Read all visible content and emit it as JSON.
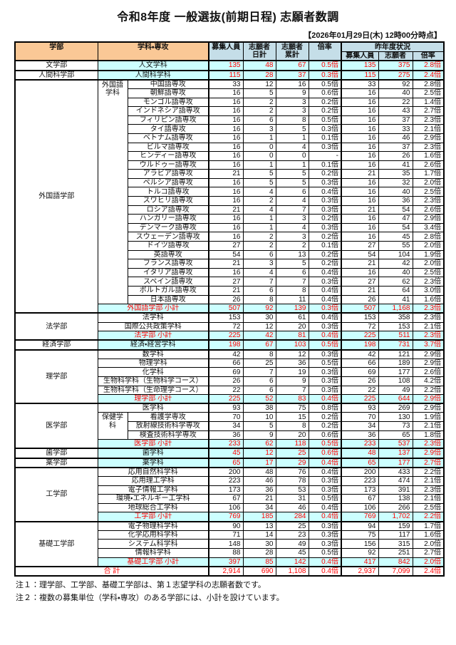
{
  "title": "令和8年度 一般選抜(前期日程) 志願者数調",
  "timestamp": "【2026年01月29日(木) 12時00分時点】",
  "colors": {
    "header_peach": "#FAC896",
    "header_blue": "#C5DEE8",
    "highlight_cyan": "#CCFFFF",
    "accent_red": "#FF0000"
  },
  "notes": {
    "note1": "注１：理学部、工学部、基礎工学部は、第１志望学科の志願者数です。",
    "note2": "注２：複数の募集単位（学科・専攻）のある学部には、小計を設けています。"
  },
  "table": {
    "header": {
      "faculty": "学部",
      "department": "学科・専攻",
      "capacity": "募集人員",
      "applicants_daily": "志願者\n日計",
      "applicants_total": "志願者\n累計",
      "ratio": "倍率",
      "last_year": "昨年度状況",
      "ly_capacity": "募集人員",
      "ly_applicants": "志願者",
      "ly_ratio": "倍率"
    },
    "rows": [
      {
        "faculty": {
          "text": "文学部",
          "rowspan": 1
        },
        "major": {
          "text": "人文学科",
          "colspan": 2
        },
        "highlight": true,
        "group_start": true,
        "values": [
          "135",
          "48",
          "67",
          "0.5倍",
          "135",
          "375",
          "2.8倍"
        ]
      },
      {
        "faculty": {
          "text": "人間科学部",
          "rowspan": 1
        },
        "major": {
          "text": "人間科学科",
          "colspan": 2
        },
        "highlight": true,
        "group_start": true,
        "values": [
          "115",
          "28",
          "37",
          "0.3倍",
          "115",
          "275",
          "2.4倍"
        ]
      },
      {
        "faculty": {
          "text": "外国語学部",
          "rowspan": 26
        },
        "dept": {
          "text": "外国語\n学科",
          "rowspan": 25
        },
        "major": {
          "text": "中国語専攻",
          "colspan": 1
        },
        "group_start": true,
        "values": [
          "33",
          "12",
          "16",
          "0.5倍",
          "33",
          "92",
          "2.8倍"
        ]
      },
      {
        "major": {
          "text": "朝鮮語専攻",
          "colspan": 1
        },
        "values": [
          "16",
          "5",
          "9",
          "0.6倍",
          "16",
          "40",
          "2.5倍"
        ]
      },
      {
        "major": {
          "text": "モンゴル語専攻",
          "colspan": 1
        },
        "values": [
          "16",
          "2",
          "3",
          "0.2倍",
          "16",
          "22",
          "1.4倍"
        ]
      },
      {
        "major": {
          "text": "インドネシア語専攻",
          "colspan": 1
        },
        "values": [
          "16",
          "2",
          "3",
          "0.2倍",
          "16",
          "43",
          "2.7倍"
        ]
      },
      {
        "major": {
          "text": "フィリピン語専攻",
          "colspan": 1
        },
        "values": [
          "16",
          "6",
          "8",
          "0.5倍",
          "16",
          "37",
          "2.3倍"
        ]
      },
      {
        "major": {
          "text": "タイ語専攻",
          "colspan": 1
        },
        "values": [
          "16",
          "3",
          "5",
          "0.3倍",
          "16",
          "33",
          "2.1倍"
        ]
      },
      {
        "major": {
          "text": "ベトナム語専攻",
          "colspan": 1
        },
        "values": [
          "16",
          "1",
          "1",
          "0.1倍",
          "16",
          "46",
          "2.9倍"
        ]
      },
      {
        "major": {
          "text": "ビルマ語専攻",
          "colspan": 1
        },
        "values": [
          "16",
          "0",
          "4",
          "0.3倍",
          "16",
          "37",
          "2.3倍"
        ]
      },
      {
        "major": {
          "text": "ヒンディー語専攻",
          "colspan": 1
        },
        "values": [
          "16",
          "0",
          "0",
          "-",
          "16",
          "26",
          "1.6倍"
        ]
      },
      {
        "major": {
          "text": "ウルドゥー語専攻",
          "colspan": 1
        },
        "values": [
          "16",
          "1",
          "1",
          "0.1倍",
          "16",
          "41",
          "2.6倍"
        ]
      },
      {
        "major": {
          "text": "アラビア語専攻",
          "colspan": 1
        },
        "values": [
          "21",
          "5",
          "5",
          "0.2倍",
          "21",
          "35",
          "1.7倍"
        ]
      },
      {
        "major": {
          "text": "ペルシア語専攻",
          "colspan": 1
        },
        "values": [
          "16",
          "5",
          "5",
          "0.3倍",
          "16",
          "32",
          "2.0倍"
        ]
      },
      {
        "major": {
          "text": "トルコ語専攻",
          "colspan": 1
        },
        "values": [
          "16",
          "4",
          "6",
          "0.4倍",
          "16",
          "40",
          "2.5倍"
        ]
      },
      {
        "major": {
          "text": "スワヒリ語専攻",
          "colspan": 1
        },
        "values": [
          "16",
          "2",
          "4",
          "0.3倍",
          "16",
          "36",
          "2.3倍"
        ]
      },
      {
        "major": {
          "text": "ロシア語専攻",
          "colspan": 1
        },
        "values": [
          "21",
          "4",
          "7",
          "0.3倍",
          "21",
          "54",
          "2.6倍"
        ]
      },
      {
        "major": {
          "text": "ハンガリー語専攻",
          "colspan": 1
        },
        "values": [
          "16",
          "1",
          "3",
          "0.2倍",
          "16",
          "47",
          "2.9倍"
        ]
      },
      {
        "major": {
          "text": "デンマーク語専攻",
          "colspan": 1
        },
        "values": [
          "16",
          "1",
          "4",
          "0.3倍",
          "16",
          "54",
          "3.4倍"
        ]
      },
      {
        "major": {
          "text": "スウェーデン語専攻",
          "colspan": 1
        },
        "values": [
          "16",
          "2",
          "3",
          "0.2倍",
          "16",
          "45",
          "2.8倍"
        ]
      },
      {
        "major": {
          "text": "ドイツ語専攻",
          "colspan": 1
        },
        "values": [
          "27",
          "2",
          "2",
          "0.1倍",
          "27",
          "55",
          "2.0倍"
        ]
      },
      {
        "major": {
          "text": "英語専攻",
          "colspan": 1
        },
        "values": [
          "54",
          "6",
          "13",
          "0.2倍",
          "54",
          "104",
          "1.9倍"
        ]
      },
      {
        "major": {
          "text": "フランス語専攻",
          "colspan": 1
        },
        "values": [
          "21",
          "3",
          "5",
          "0.2倍",
          "21",
          "42",
          "2.0倍"
        ]
      },
      {
        "major": {
          "text": "イタリア語専攻",
          "colspan": 1
        },
        "values": [
          "16",
          "4",
          "6",
          "0.4倍",
          "16",
          "40",
          "2.5倍"
        ]
      },
      {
        "major": {
          "text": "スペイン語専攻",
          "colspan": 1
        },
        "values": [
          "27",
          "7",
          "7",
          "0.3倍",
          "27",
          "62",
          "2.3倍"
        ]
      },
      {
        "major": {
          "text": "ポルトガル語専攻",
          "colspan": 1
        },
        "values": [
          "21",
          "6",
          "8",
          "0.4倍",
          "21",
          "64",
          "3.0倍"
        ]
      },
      {
        "major": {
          "text": "日本語専攻",
          "colspan": 1
        },
        "values": [
          "26",
          "8",
          "11",
          "0.4倍",
          "26",
          "41",
          "1.6倍"
        ]
      },
      {
        "major": {
          "text": "外国語学部 小計",
          "colspan": 2
        },
        "highlight": true,
        "red_label": true,
        "values": [
          "507",
          "92",
          "139",
          "0.3倍",
          "507",
          "1,168",
          "2.3倍"
        ]
      },
      {
        "faculty": {
          "text": "法学部",
          "rowspan": 3
        },
        "major": {
          "text": "法学科",
          "colspan": 2
        },
        "group_start": true,
        "values": [
          "153",
          "30",
          "61",
          "0.4倍",
          "153",
          "358",
          "2.3倍"
        ]
      },
      {
        "major": {
          "text": "国際公共政策学科",
          "colspan": 2
        },
        "values": [
          "72",
          "12",
          "20",
          "0.3倍",
          "72",
          "153",
          "2.1倍"
        ]
      },
      {
        "major": {
          "text": "法学部 小計",
          "colspan": 2
        },
        "highlight": true,
        "red_label": true,
        "values": [
          "225",
          "42",
          "81",
          "0.4倍",
          "225",
          "511",
          "2.3倍"
        ]
      },
      {
        "faculty": {
          "text": "経済学部",
          "rowspan": 1
        },
        "major": {
          "text": "経済・経営学科",
          "colspan": 2
        },
        "highlight": true,
        "group_start": true,
        "values": [
          "198",
          "67",
          "103",
          "0.5倍",
          "198",
          "731",
          "3.7倍"
        ]
      },
      {
        "faculty": {
          "text": "理学部",
          "rowspan": 6
        },
        "major": {
          "text": "数学科",
          "colspan": 2
        },
        "group_start": true,
        "values": [
          "42",
          "8",
          "12",
          "0.3倍",
          "42",
          "121",
          "2.9倍"
        ]
      },
      {
        "major": {
          "text": "物理学科",
          "colspan": 2
        },
        "values": [
          "66",
          "25",
          "36",
          "0.5倍",
          "66",
          "189",
          "2.9倍"
        ]
      },
      {
        "major": {
          "text": "化学科",
          "colspan": 2
        },
        "values": [
          "69",
          "7",
          "19",
          "0.3倍",
          "69",
          "177",
          "2.6倍"
        ]
      },
      {
        "major": {
          "text": "生物科学科（生物科学コース）",
          "colspan": 2
        },
        "values": [
          "26",
          "6",
          "9",
          "0.3倍",
          "26",
          "108",
          "4.2倍"
        ]
      },
      {
        "major": {
          "text": "生物科学科（生命理学コース）",
          "colspan": 2
        },
        "values": [
          "22",
          "6",
          "7",
          "0.3倍",
          "22",
          "49",
          "2.2倍"
        ]
      },
      {
        "major": {
          "text": "理学部 小計",
          "colspan": 2
        },
        "highlight": true,
        "red_label": true,
        "values": [
          "225",
          "52",
          "83",
          "0.4倍",
          "225",
          "644",
          "2.9倍"
        ]
      },
      {
        "faculty": {
          "text": "医学部",
          "rowspan": 5
        },
        "major": {
          "text": "医学科",
          "colspan": 2
        },
        "group_start": true,
        "values": [
          "93",
          "38",
          "75",
          "0.8倍",
          "93",
          "269",
          "2.9倍"
        ]
      },
      {
        "dept": {
          "text": "保健学\n科",
          "rowspan": 3
        },
        "major": {
          "text": "看護学専攻",
          "colspan": 1
        },
        "values": [
          "70",
          "10",
          "15",
          "0.2倍",
          "70",
          "130",
          "1.9倍"
        ]
      },
      {
        "major": {
          "text": "放射線技術科学専攻",
          "colspan": 1
        },
        "values": [
          "34",
          "5",
          "8",
          "0.2倍",
          "34",
          "73",
          "2.1倍"
        ]
      },
      {
        "major": {
          "text": "検査技術科学専攻",
          "colspan": 1
        },
        "values": [
          "36",
          "9",
          "20",
          "0.6倍",
          "36",
          "65",
          "1.8倍"
        ]
      },
      {
        "major": {
          "text": "医学部 小計",
          "colspan": 2
        },
        "highlight": true,
        "red_label": true,
        "values": [
          "233",
          "62",
          "118",
          "0.5倍",
          "233",
          "537",
          "2.3倍"
        ]
      },
      {
        "faculty": {
          "text": "歯学部",
          "rowspan": 1
        },
        "major": {
          "text": "歯学科",
          "colspan": 2
        },
        "highlight": true,
        "group_start": true,
        "values": [
          "45",
          "12",
          "25",
          "0.6倍",
          "48",
          "137",
          "2.9倍"
        ]
      },
      {
        "faculty": {
          "text": "薬学部",
          "rowspan": 1
        },
        "major": {
          "text": "薬学科",
          "colspan": 2
        },
        "highlight": true,
        "group_start": true,
        "values": [
          "65",
          "17",
          "29",
          "0.4倍",
          "65",
          "177",
          "2.7倍"
        ]
      },
      {
        "faculty": {
          "text": "工学部",
          "rowspan": 6
        },
        "major": {
          "text": "応用自然科学科",
          "colspan": 2
        },
        "group_start": true,
        "values": [
          "200",
          "48",
          "76",
          "0.4倍",
          "200",
          "433",
          "2.2倍"
        ]
      },
      {
        "major": {
          "text": "応用理工学科",
          "colspan": 2
        },
        "values": [
          "223",
          "46",
          "78",
          "0.3倍",
          "223",
          "474",
          "2.1倍"
        ]
      },
      {
        "major": {
          "text": "電子情報工学科",
          "colspan": 2
        },
        "values": [
          "173",
          "36",
          "53",
          "0.3倍",
          "173",
          "391",
          "2.3倍"
        ]
      },
      {
        "major": {
          "text": "環境・エネルギー工学科",
          "colspan": 2
        },
        "values": [
          "67",
          "21",
          "31",
          "0.5倍",
          "67",
          "138",
          "2.1倍"
        ]
      },
      {
        "major": {
          "text": "地球総合工学科",
          "colspan": 2
        },
        "values": [
          "106",
          "34",
          "46",
          "0.4倍",
          "106",
          "266",
          "2.5倍"
        ]
      },
      {
        "major": {
          "text": "工学部 小計",
          "colspan": 2
        },
        "highlight": true,
        "red_label": true,
        "values": [
          "769",
          "185",
          "284",
          "0.4倍",
          "769",
          "1,702",
          "2.2倍"
        ]
      },
      {
        "faculty": {
          "text": "基礎工学部",
          "rowspan": 5
        },
        "major": {
          "text": "電子物理科学科",
          "colspan": 2
        },
        "group_start": true,
        "values": [
          "90",
          "13",
          "25",
          "0.3倍",
          "94",
          "159",
          "1.7倍"
        ]
      },
      {
        "major": {
          "text": "化学応用科学科",
          "colspan": 2
        },
        "values": [
          "71",
          "14",
          "23",
          "0.3倍",
          "75",
          "117",
          "1.6倍"
        ]
      },
      {
        "major": {
          "text": "システム科学科",
          "colspan": 2
        },
        "values": [
          "148",
          "30",
          "49",
          "0.3倍",
          "156",
          "315",
          "2.0倍"
        ]
      },
      {
        "major": {
          "text": "情報科学科",
          "colspan": 2
        },
        "values": [
          "88",
          "28",
          "45",
          "0.5倍",
          "92",
          "251",
          "2.7倍"
        ]
      },
      {
        "major": {
          "text": "基礎工学部 小計",
          "colspan": 2
        },
        "highlight": true,
        "red_label": true,
        "values": [
          "397",
          "85",
          "142",
          "0.4倍",
          "417",
          "842",
          "2.0倍"
        ]
      },
      {
        "major": {
          "text": "合 計",
          "colspan": 3
        },
        "red_label": true,
        "red_nums": true,
        "group_start": true,
        "values": [
          "2,914",
          "690",
          "1,108",
          "0.4倍",
          "2,937",
          "7,099",
          "2.4倍"
        ]
      }
    ]
  }
}
